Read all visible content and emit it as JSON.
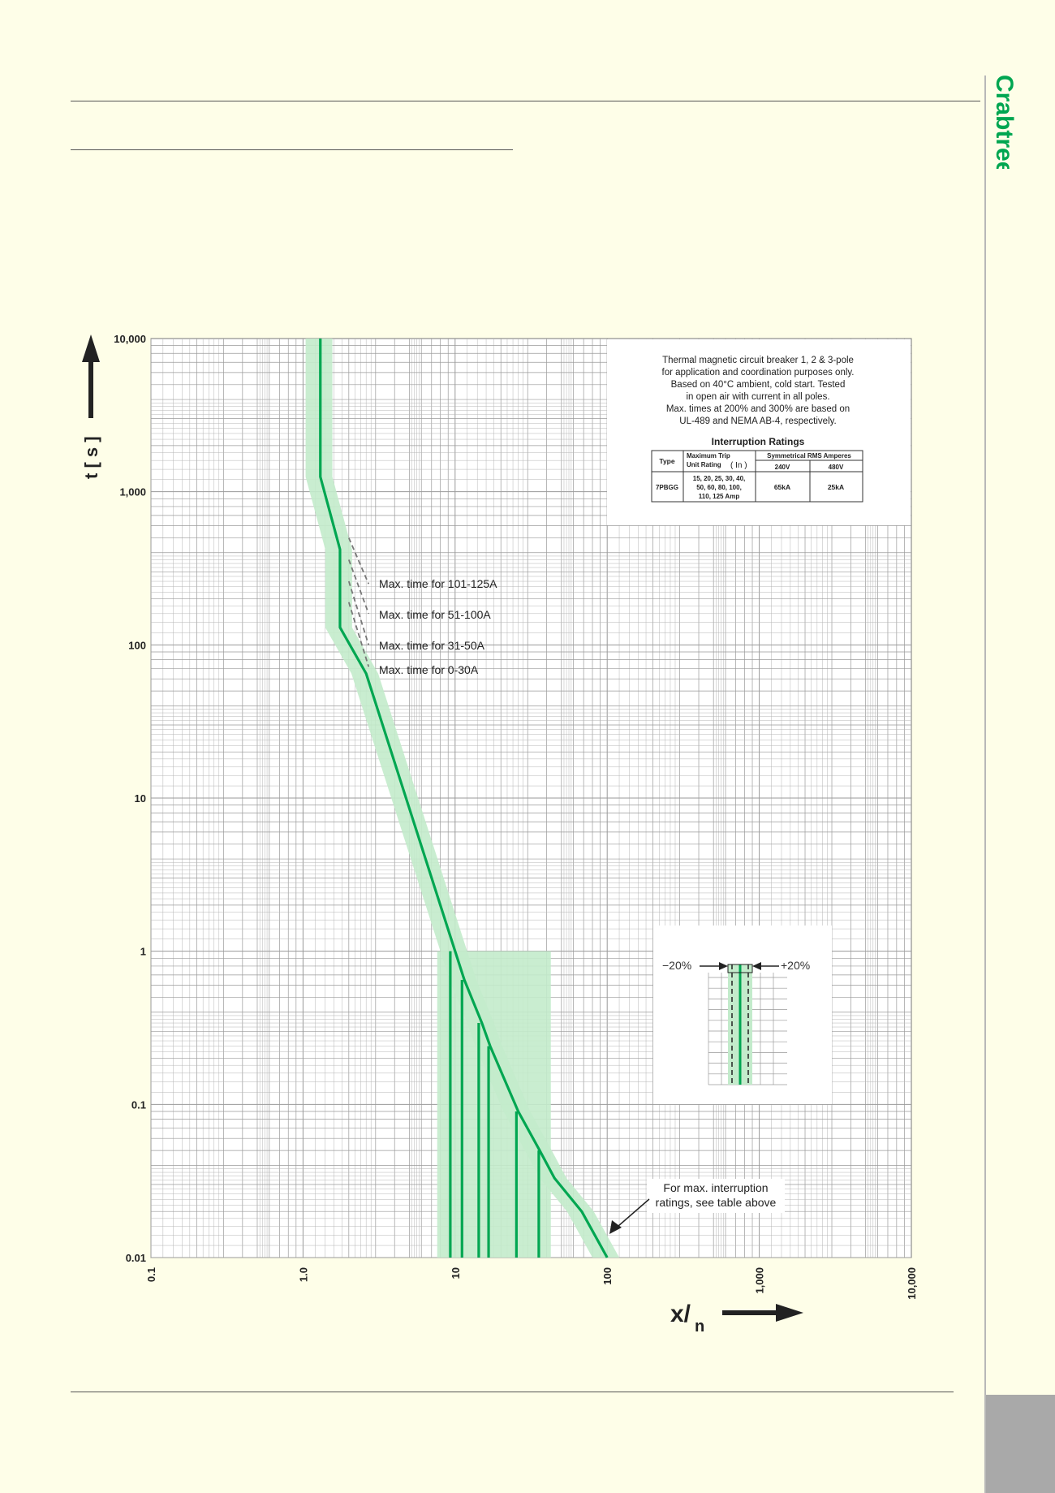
{
  "brand": {
    "name": "Crabtree",
    "color": "#00a651"
  },
  "colors": {
    "curve": "#00a651",
    "band": "#c3ebcb",
    "grid": "#9a9a9a",
    "background": "#fefee8"
  },
  "chart_data": {
    "type": "line",
    "scale": "log-log",
    "xlabel_main": "x/",
    "xlabel_sub": "n",
    "ylabel": "t [ s ]",
    "xlim": [
      0.1,
      10000
    ],
    "ylim": [
      0.01,
      10000
    ],
    "x_ticks": [
      "0.1",
      "1.0",
      "10",
      "100",
      "1,000",
      "10,000"
    ],
    "y_ticks": [
      "10,000",
      "1,000",
      "100",
      "10",
      "1",
      "0.1",
      "0.01"
    ],
    "grid": true,
    "series": [
      {
        "name": "Trip curve",
        "points": [
          [
            1.3,
            10000
          ],
          [
            1.3,
            1250
          ],
          [
            1.75,
            420
          ],
          [
            1.75,
            130
          ],
          [
            2.6,
            65
          ],
          [
            10,
            1
          ],
          [
            11.5,
            0.65
          ],
          [
            15,
            0.34
          ],
          [
            17,
            0.24
          ],
          [
            26,
            0.09
          ],
          [
            36,
            0.05
          ],
          [
            45,
            0.033
          ],
          [
            68,
            0.02
          ],
          [
            100,
            0.01
          ]
        ]
      }
    ],
    "instantaneous_drops": [
      {
        "x": 9.3,
        "t": 1.0
      },
      {
        "x": 11.1,
        "t": 0.65
      },
      {
        "x": 14.3,
        "t": 0.34
      },
      {
        "x": 16.6,
        "t": 0.24
      },
      {
        "x": 25.3,
        "t": 0.09
      },
      {
        "x": 35.5,
        "t": 0.05
      }
    ],
    "tolerance_band": "±20%",
    "max_time_lines": [
      {
        "label": "Max. time for 101-125A",
        "from": [
          2.0,
          500
        ],
        "to": [
          2.7,
          250
        ]
      },
      {
        "label": "Max. time for 51-100A",
        "from": [
          2.0,
          360
        ],
        "to": [
          2.7,
          160
        ]
      },
      {
        "label": "Max. time for 31-50A",
        "from": [
          2.0,
          260
        ],
        "to": [
          2.7,
          100
        ]
      },
      {
        "label": "Max. time for 0-30A",
        "from": [
          2.0,
          190
        ],
        "to": [
          2.7,
          72
        ]
      }
    ],
    "annotation_interrupt": "For max. interruption ratings, see table above"
  },
  "info_box": {
    "description_lines": [
      "Thermal magnetic circuit breaker 1, 2 & 3-pole",
      "for application and coordination purposes only.",
      "Based on  40°C ambient, cold start. Tested",
      "in open air with current in all poles.",
      "Max. times at 200% and 300% are based on",
      "UL-489 and NEMA AB-4, respectively."
    ],
    "table_title": "Interruption Ratings",
    "headers": {
      "type": "Type",
      "max_trip_line1": "Maximum Trip",
      "max_trip_line2": "Unit Rating",
      "max_trip_symbol": "( In )",
      "symmetrical": "Symmetrical RMS Amperes",
      "v240": "240V",
      "v480": "480V"
    },
    "row": {
      "type": "7PBGG",
      "ratings_lines": [
        "15, 20, 25, 30, 40,",
        "50, 60, 80, 100,",
        "110, 125 Amp"
      ],
      "v240": "65kA",
      "v480": "25kA"
    }
  },
  "tolerance_inset": {
    "minus_label": "−20%",
    "plus_label": "+20%"
  }
}
